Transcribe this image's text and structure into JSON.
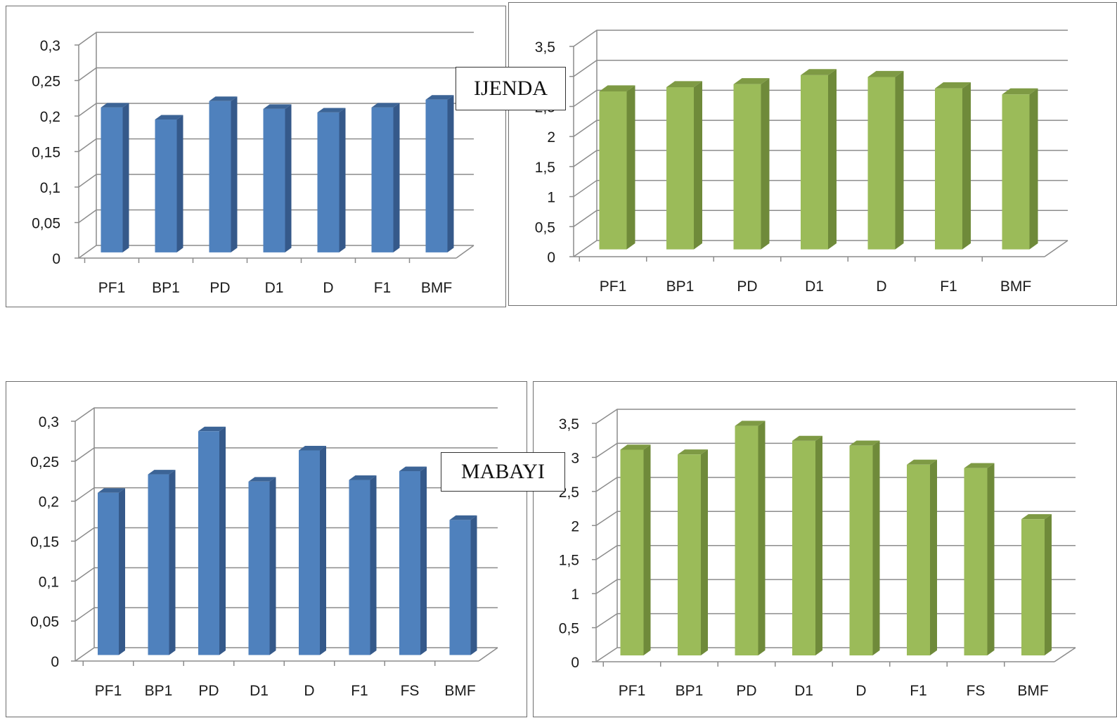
{
  "labels": {
    "top": "IJENDA",
    "bottom": "MABAYI"
  },
  "colors": {
    "blue": {
      "front": "#4F81BD",
      "side": "#35598A",
      "top": "#3C6496"
    },
    "green": {
      "front": "#9BBB59",
      "side": "#6F8A3A",
      "top": "#7E9A44"
    },
    "grid": "#8c8c8c",
    "text": "#1a1a1a"
  },
  "chart_data": [
    {
      "type": "bar",
      "categories": [
        "PF1",
        "BP1",
        "PD",
        "D1",
        "D",
        "F1",
        "BMF"
      ],
      "values": [
        0.204,
        0.187,
        0.213,
        0.202,
        0.197,
        0.204,
        0.215
      ],
      "ylim": [
        0,
        0.3
      ],
      "yticks": [
        "0",
        "0,05",
        "0,1",
        "0,15",
        "0,2",
        "0,25",
        "0,3"
      ],
      "color": "blue",
      "grid": true
    },
    {
      "type": "bar",
      "categories": [
        "PF1",
        "BP1",
        "PD",
        "D1",
        "D",
        "F1",
        "BMF"
      ],
      "values": [
        2.63,
        2.7,
        2.75,
        2.9,
        2.87,
        2.68,
        2.58
      ],
      "ylim": [
        0,
        3.5
      ],
      "yticks": [
        "0",
        "0,5",
        "1",
        "1,5",
        "2",
        "2,5",
        "3",
        "3,5"
      ],
      "color": "green",
      "grid": true
    },
    {
      "type": "bar",
      "categories": [
        "PF1",
        "BP1",
        "PD",
        "D1",
        "D",
        "F1",
        "FS",
        "BMF"
      ],
      "values": [
        0.203,
        0.226,
        0.28,
        0.217,
        0.256,
        0.219,
        0.23,
        0.169
      ],
      "ylim": [
        0,
        0.3
      ],
      "yticks": [
        "0",
        "0,05",
        "0,1",
        "0,15",
        "0,2",
        "0,25",
        "0,3"
      ],
      "color": "blue",
      "grid": true
    },
    {
      "type": "bar",
      "categories": [
        "PF1",
        "BP1",
        "PD",
        "D1",
        "D",
        "F1",
        "FS",
        "BMF"
      ],
      "values": [
        3.02,
        2.95,
        3.37,
        3.15,
        3.08,
        2.8,
        2.75,
        2.0
      ],
      "ylim": [
        0,
        3.5
      ],
      "yticks": [
        "0",
        "0,5",
        "1",
        "1,5",
        "2",
        "2,5",
        "3",
        "3,5"
      ],
      "color": "green",
      "grid": true
    }
  ]
}
